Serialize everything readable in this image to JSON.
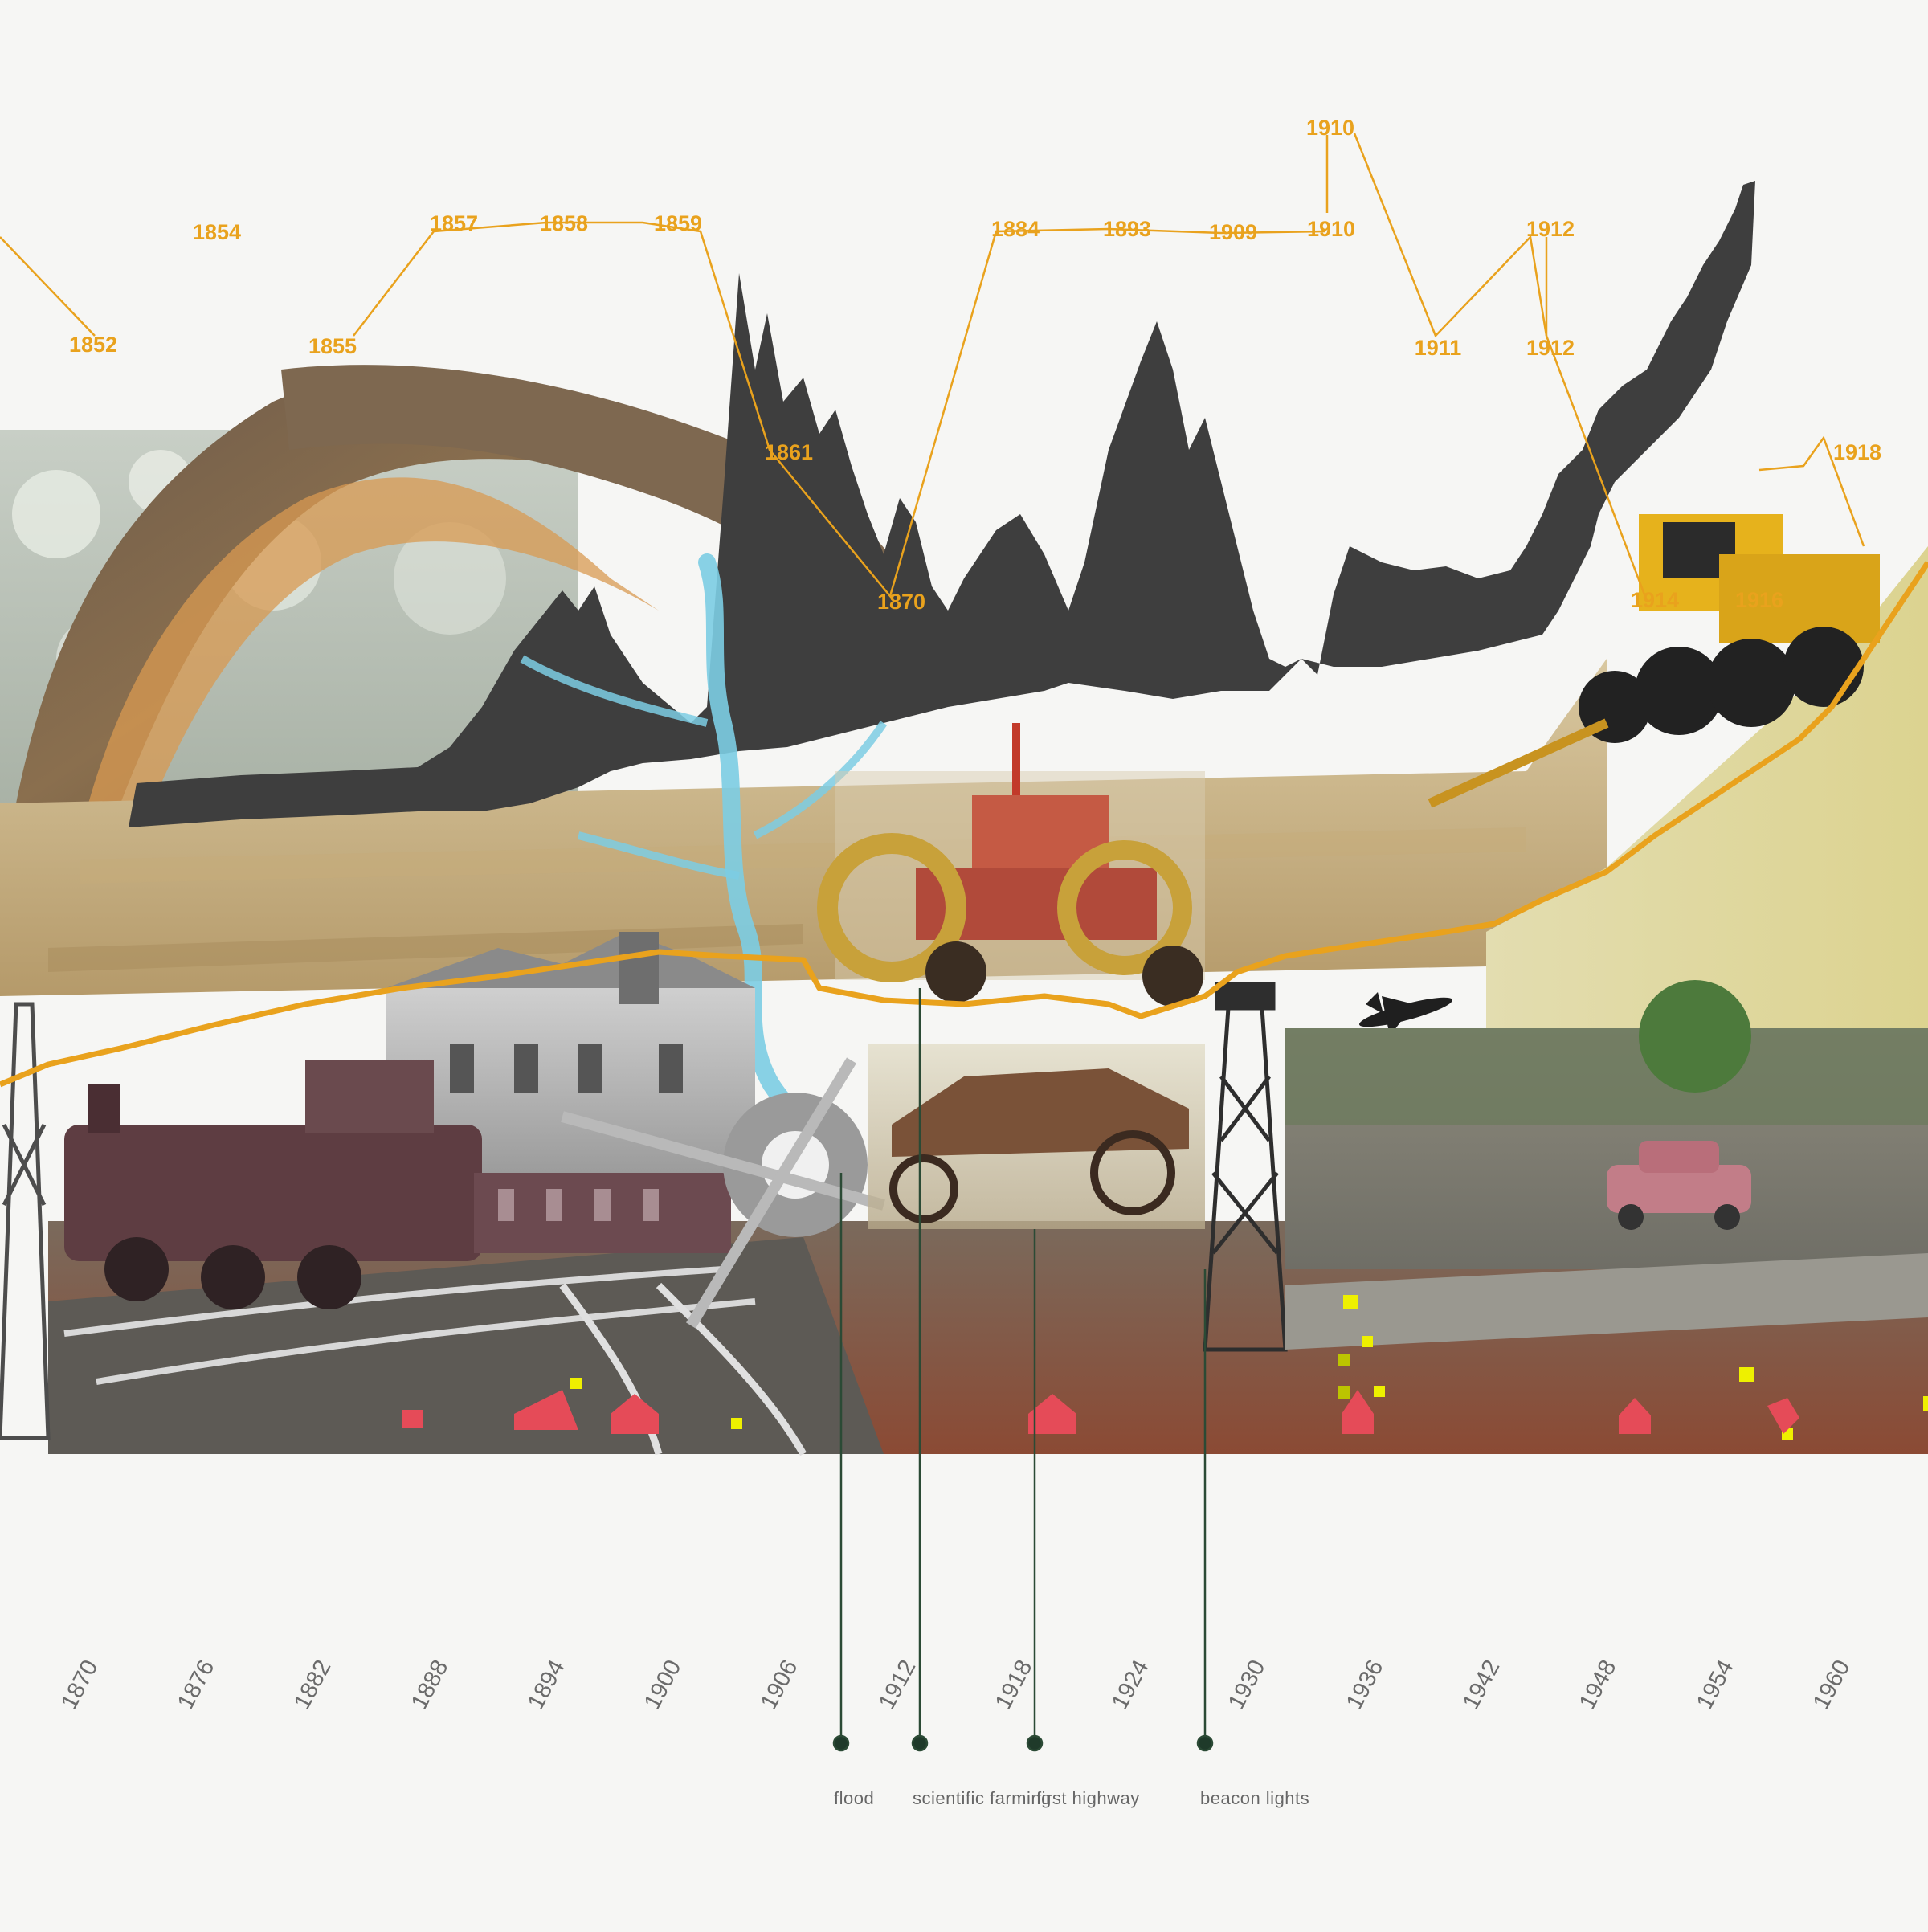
{
  "colors": {
    "background": "#f6f6f4",
    "accent": "#e9a21d",
    "dark_band": "#3e3e3e",
    "river": "#7ccde3",
    "church_marker": "#eef000",
    "church_icon": "#e54b58",
    "event_line": "#2b4a35"
  },
  "year_labels": [
    {
      "id": "y1852",
      "text": "1852"
    },
    {
      "id": "y1854",
      "text": "1854"
    },
    {
      "id": "y1855",
      "text": "1855"
    },
    {
      "id": "y1857",
      "text": "1857"
    },
    {
      "id": "y1858",
      "text": "1858"
    },
    {
      "id": "y1859",
      "text": "1859"
    },
    {
      "id": "y1861",
      "text": "1861"
    },
    {
      "id": "y1870",
      "text": "1870"
    },
    {
      "id": "y1884",
      "text": "1884"
    },
    {
      "id": "y1893",
      "text": "1893"
    },
    {
      "id": "y1909",
      "text": "1909"
    },
    {
      "id": "y1910a",
      "text": "1910"
    },
    {
      "id": "y1910b",
      "text": "1910"
    },
    {
      "id": "y1911",
      "text": "1911"
    },
    {
      "id": "y1912a",
      "text": "1912"
    },
    {
      "id": "y1912b",
      "text": "1912"
    },
    {
      "id": "y1914",
      "text": "1914"
    },
    {
      "id": "y1916",
      "text": "1916"
    },
    {
      "id": "y1918",
      "text": "1918"
    }
  ],
  "axis_ticks": [
    "1870",
    "1876",
    "1882",
    "1888",
    "1894",
    "1900",
    "1906",
    "1912",
    "1918",
    "1924",
    "1930",
    "1936",
    "1942",
    "1948",
    "1954",
    "1960"
  ],
  "events": [
    {
      "id": "flood",
      "label": "flood"
    },
    {
      "id": "scientific-farming",
      "label": "scientific farming"
    },
    {
      "id": "first-highway",
      "label": "first highway"
    },
    {
      "id": "beacon-lights",
      "label": "beacon lights"
    }
  ],
  "collage": {
    "photos": [
      "tree-image",
      "wheat-field-image",
      "combine-harvester-image",
      "tractor-image",
      "train-station-image",
      "steam-train-image",
      "railroad-tracks-image",
      "vintage-car-image",
      "beacon-tower-image",
      "airplane-image",
      "highway-image",
      "pink-car-image",
      "trees-image"
    ]
  }
}
